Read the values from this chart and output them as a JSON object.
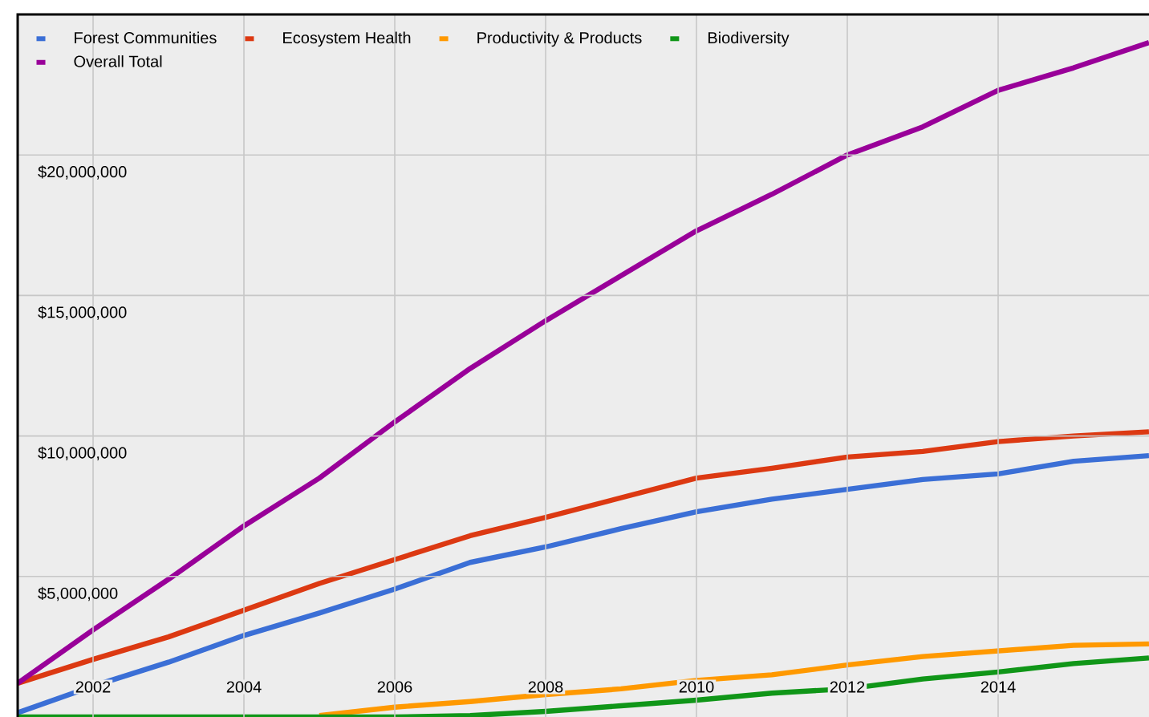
{
  "chart_data": {
    "type": "line",
    "x": [
      2001,
      2002,
      2003,
      2004,
      2005,
      2006,
      2007,
      2008,
      2009,
      2010,
      2011,
      2012,
      2013,
      2014,
      2015,
      2016
    ],
    "series": [
      {
        "name": "Forest Communities",
        "color": "#3b6fd6",
        "values": [
          150000,
          1100000,
          1950000,
          2900000,
          3700000,
          4550000,
          5500000,
          6050000,
          6700000,
          7300000,
          7750000,
          8100000,
          8450000,
          8650000,
          9100000,
          9300000
        ]
      },
      {
        "name": "Ecosystem Health",
        "color": "#dc3912",
        "values": [
          1200000,
          2050000,
          2850000,
          3800000,
          4750000,
          5600000,
          6450000,
          7100000,
          7800000,
          8500000,
          8850000,
          9250000,
          9450000,
          9800000,
          10000000,
          10150000
        ]
      },
      {
        "name": "Productivity & Products",
        "color": "#ff9900",
        "values": [
          null,
          null,
          null,
          null,
          50000,
          350000,
          550000,
          800000,
          1000000,
          1300000,
          1500000,
          1850000,
          2150000,
          2350000,
          2550000,
          2600000
        ]
      },
      {
        "name": "Biodiversity",
        "color": "#109618",
        "values": [
          0,
          0,
          0,
          0,
          0,
          0,
          50000,
          200000,
          400000,
          600000,
          850000,
          1000000,
          1350000,
          1600000,
          1900000,
          2100000
        ]
      },
      {
        "name": "Overall Total",
        "color": "#990099",
        "values": [
          1200000,
          3100000,
          4900000,
          6800000,
          8500000,
          10500000,
          12400000,
          14100000,
          15700000,
          17300000,
          18600000,
          20000000,
          21000000,
          22300000,
          23100000,
          24000000
        ]
      }
    ],
    "xlim": [
      2001,
      2016
    ],
    "ylim": [
      0,
      25000000
    ],
    "xticks": [
      2002,
      2004,
      2006,
      2008,
      2010,
      2012,
      2014
    ],
    "yticks": [
      {
        "value": 5000000,
        "label": "$5,000,000"
      },
      {
        "value": 10000000,
        "label": "$10,000,000"
      },
      {
        "value": 15000000,
        "label": "$15,000,000"
      },
      {
        "value": 20000000,
        "label": "$20,000,000"
      }
    ],
    "grid": true,
    "legend": "top left",
    "marker": "none",
    "line_style": "solid"
  }
}
